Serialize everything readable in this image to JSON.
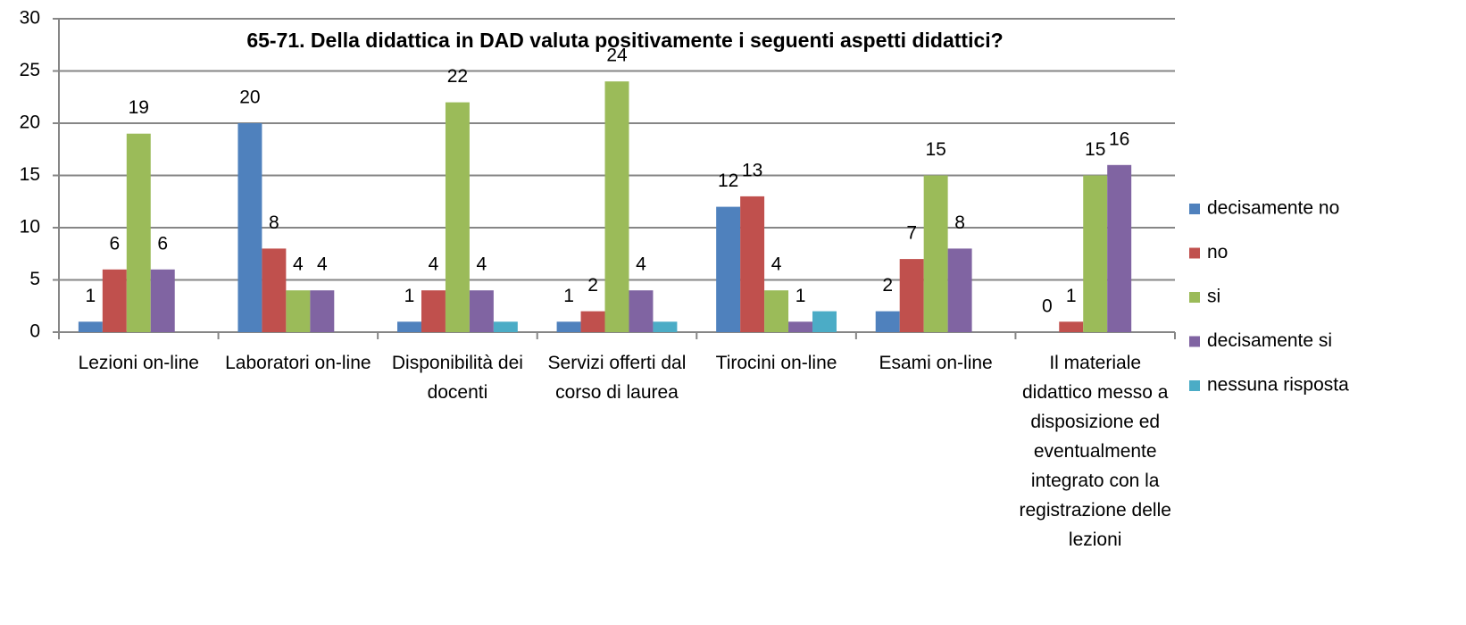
{
  "chart_data": {
    "type": "bar",
    "title": "65-71. Della didattica in DAD valuta positivamente i seguenti aspetti didattici?",
    "categories": [
      "Lezioni on-line",
      "Laboratori on-line",
      "Disponibilità dei docenti",
      "Servizi offerti dal corso di laurea",
      "Tirocini on-line",
      "Esami on-line",
      "Il materiale didattico messo a disposizione ed eventualmente integrato con la registrazione delle lezioni"
    ],
    "series": [
      {
        "name": "decisamente no",
        "color": "#4f81bd",
        "values": [
          1,
          20,
          1,
          1,
          12,
          2,
          0
        ]
      },
      {
        "name": "no",
        "color": "#c0504d",
        "values": [
          6,
          8,
          4,
          2,
          13,
          7,
          1
        ]
      },
      {
        "name": "si",
        "color": "#9bbb59",
        "values": [
          19,
          4,
          22,
          24,
          4,
          15,
          15
        ]
      },
      {
        "name": "decisamente si",
        "color": "#8064a2",
        "values": [
          6,
          4,
          4,
          4,
          1,
          8,
          16
        ]
      },
      {
        "name": "nessuna risposta",
        "color": "#4bacc6",
        "values": [
          null,
          null,
          1,
          1,
          2,
          null,
          null
        ],
        "data_labels": false
      }
    ],
    "ylim": [
      0,
      30
    ],
    "yticks": [
      0,
      5,
      10,
      15,
      20,
      25,
      30
    ],
    "grid": true,
    "legend": "right"
  }
}
